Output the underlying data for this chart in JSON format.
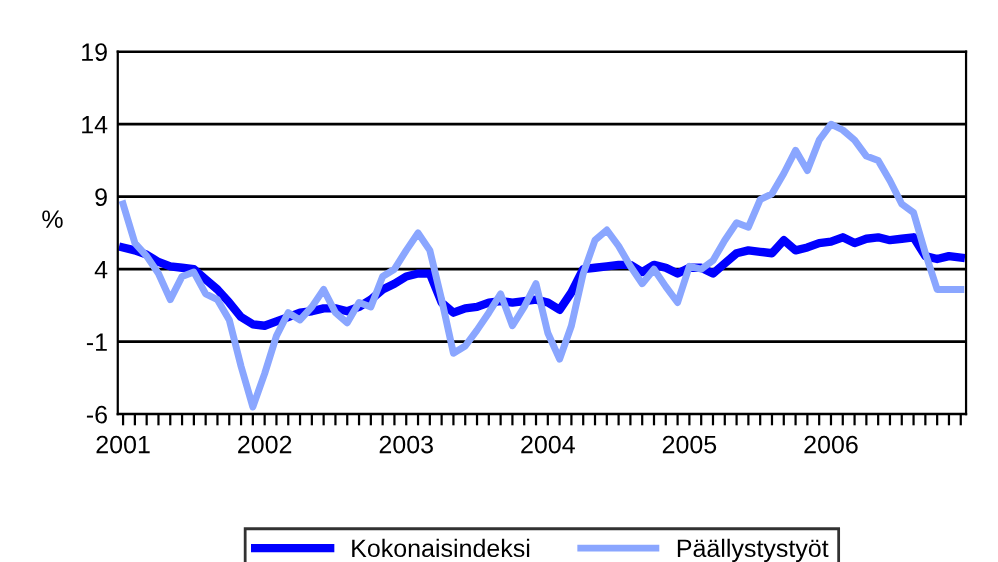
{
  "chart_data": {
    "type": "line",
    "ylabel": "%",
    "categories": [
      "2001",
      null,
      null,
      null,
      null,
      null,
      null,
      null,
      null,
      null,
      null,
      null,
      "2002",
      null,
      null,
      null,
      null,
      null,
      null,
      null,
      null,
      null,
      null,
      null,
      "2003",
      null,
      null,
      null,
      null,
      null,
      null,
      null,
      null,
      null,
      null,
      null,
      "2004",
      null,
      null,
      null,
      null,
      null,
      null,
      null,
      null,
      null,
      null,
      null,
      "2005",
      null,
      null,
      null,
      null,
      null,
      null,
      null,
      null,
      null,
      null,
      null,
      "2006",
      null,
      null,
      null,
      null,
      null,
      null,
      null,
      null,
      null,
      null,
      null
    ],
    "series": [
      {
        "name": "Kokonaisindeksi",
        "color": "#0000ff",
        "values": [
          5.5,
          5.3,
          5.0,
          4.5,
          4.2,
          4.1,
          4.0,
          3.3,
          2.6,
          1.7,
          0.7,
          0.2,
          0.1,
          0.4,
          0.7,
          1.0,
          1.1,
          1.3,
          1.3,
          1.1,
          1.4,
          1.9,
          2.6,
          3.0,
          3.5,
          3.7,
          3.7,
          1.7,
          1.0,
          1.3,
          1.4,
          1.7,
          1.8,
          1.7,
          1.8,
          1.9,
          1.7,
          1.2,
          2.4,
          4.0,
          4.1,
          4.2,
          4.3,
          4.3,
          3.8,
          4.3,
          4.1,
          3.7,
          4.1,
          4.1,
          3.7,
          4.4,
          5.1,
          5.3,
          5.2,
          5.1,
          6.0,
          5.3,
          5.5,
          5.8,
          5.9,
          6.2,
          5.8,
          6.1,
          6.2,
          6.0,
          6.1,
          6.2,
          4.9,
          4.7,
          4.9,
          4.8
        ]
      },
      {
        "name": "Päällystystyöt",
        "color": "#8aa6ff",
        "values": [
          8.5,
          5.8,
          4.9,
          3.7,
          1.9,
          3.5,
          3.8,
          2.3,
          1.9,
          0.5,
          -2.7,
          -5.5,
          -3.2,
          -0.6,
          1.0,
          0.5,
          1.4,
          2.6,
          1.0,
          0.3,
          1.7,
          1.4,
          3.5,
          4.0,
          5.3,
          6.5,
          5.3,
          1.9,
          -1.8,
          -1.3,
          -0.2,
          1.0,
          2.3,
          0.1,
          1.4,
          3.0,
          -0.4,
          -2.2,
          0.1,
          3.7,
          6.0,
          6.7,
          5.6,
          4.2,
          3.0,
          4.0,
          2.8,
          1.7,
          4.2,
          4.0,
          4.6,
          6.0,
          7.2,
          6.9,
          8.8,
          9.2,
          10.6,
          12.2,
          10.8,
          12.9,
          14.0,
          13.6,
          12.9,
          11.8,
          11.5,
          10.1,
          8.5,
          7.9,
          5.1,
          2.6,
          2.6,
          2.6
        ]
      }
    ],
    "ylim": [
      -6,
      19
    ],
    "yticks": [
      -6,
      -1,
      4,
      9,
      14,
      19
    ],
    "grid": "y",
    "legend": "bottom"
  }
}
